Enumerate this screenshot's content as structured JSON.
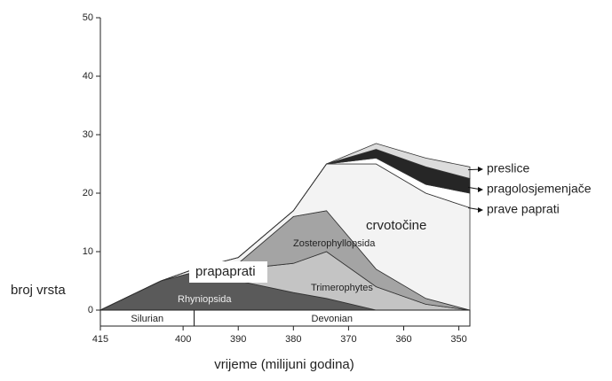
{
  "chart_data": {
    "type": "stacked_area",
    "x_label": "vrijeme (milijuni godina)",
    "y_label": "broj vrsta",
    "x": [
      415,
      404,
      398,
      390,
      380,
      374,
      365,
      356,
      348
    ],
    "xlim": [
      415,
      348
    ],
    "xticks": [
      415,
      400,
      390,
      380,
      370,
      360,
      350
    ],
    "ylim": [
      0,
      50
    ],
    "yticks": [
      0,
      10,
      20,
      30,
      40,
      50
    ],
    "series": [
      {
        "name": "Rhyniopsida",
        "color": "#5a5a5a",
        "values": [
          0,
          5,
          6.5,
          5,
          3,
          2,
          0,
          0,
          0
        ]
      },
      {
        "name": "Trimerophytes",
        "color": "#c4c4c4",
        "values": [
          0,
          0,
          0,
          2,
          5,
          8,
          4,
          1,
          0
        ]
      },
      {
        "name": "Zosterophyllopsida",
        "color": "#a4a4a4",
        "values": [
          0,
          0,
          0,
          1,
          8,
          7,
          3,
          1,
          0
        ]
      },
      {
        "name": "crvotočine",
        "color": "#f3f3f3",
        "values": [
          0,
          0,
          0.5,
          1,
          1,
          8,
          18,
          18,
          17.5
        ]
      },
      {
        "name": "prave paprati",
        "color": "#ffffff",
        "values": [
          0,
          0,
          0,
          0,
          0,
          0,
          1,
          1.5,
          2.5
        ]
      },
      {
        "name": "pragolosjemenjače",
        "color": "#262626",
        "values": [
          0,
          0,
          0,
          0,
          0,
          0,
          1.5,
          3,
          2.5
        ]
      },
      {
        "name": "preslice",
        "color": "#dcdcdc",
        "values": [
          0,
          0,
          0,
          0,
          0,
          0,
          1,
          1.5,
          2
        ]
      }
    ],
    "annotations": [
      "prapaprati"
    ],
    "periods": [
      {
        "name": "Silurian",
        "start": 415,
        "end": 398
      },
      {
        "name": "Devonian",
        "start": 398,
        "end": 348
      }
    ]
  }
}
